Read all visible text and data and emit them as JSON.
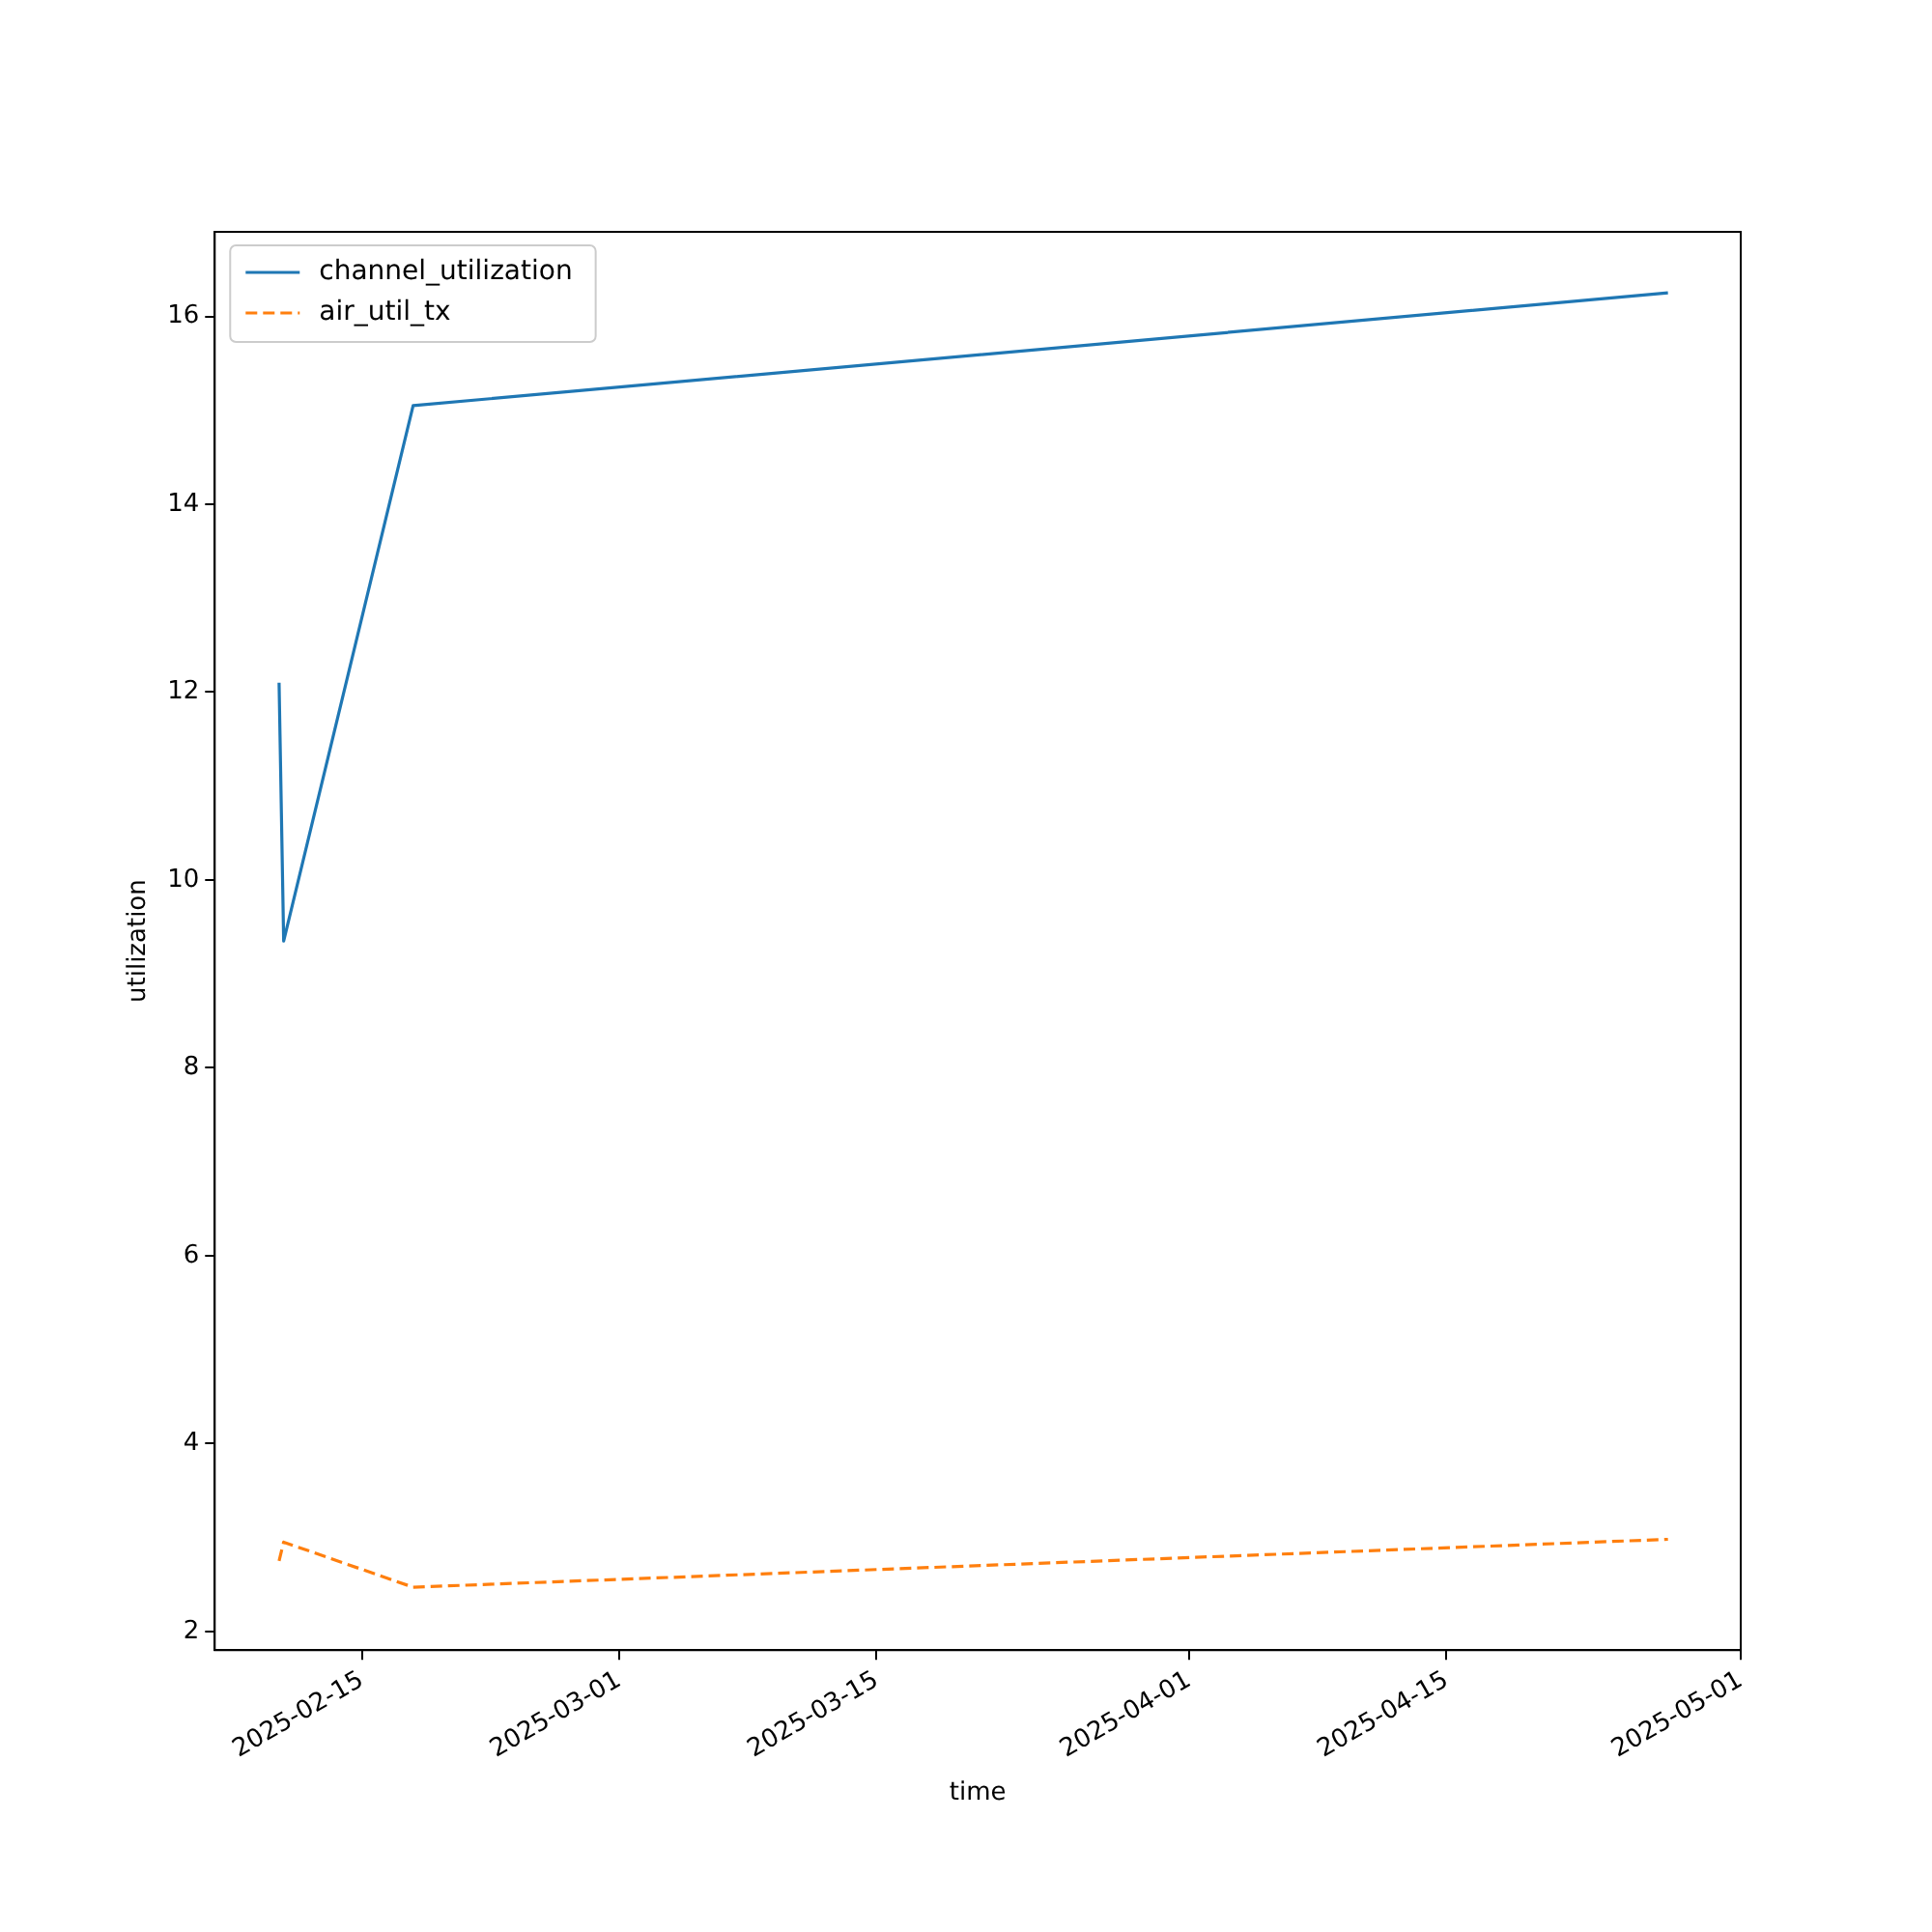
{
  "chart_data": {
    "type": "line",
    "xlabel": "time",
    "ylabel": "utilization",
    "x": [
      "2025-02-10T12:00",
      "2025-02-10T18:00",
      "2025-02-17T19:00",
      "2025-04-27T01:00"
    ],
    "series": [
      {
        "name": "channel_utilization",
        "color": "#1f77b4",
        "line_style": "solid",
        "values": [
          12.1,
          9.35,
          15.05,
          16.25
        ]
      },
      {
        "name": "air_util_tx",
        "color": "#ff7f0e",
        "line_style": "dashed",
        "values": [
          2.75,
          2.95,
          2.47,
          2.98
        ]
      }
    ],
    "xlim": [
      "2025-02-07",
      "2025-05-01"
    ],
    "xticks": [
      "2025-02-15",
      "2025-03-01",
      "2025-03-15",
      "2025-04-01",
      "2025-04-15",
      "2025-05-01"
    ],
    "ylim": [
      1.8,
      16.9
    ],
    "yticks": [
      2,
      4,
      6,
      8,
      10,
      12,
      14,
      16
    ],
    "grid": false,
    "legend": "top left",
    "marker": "none"
  }
}
